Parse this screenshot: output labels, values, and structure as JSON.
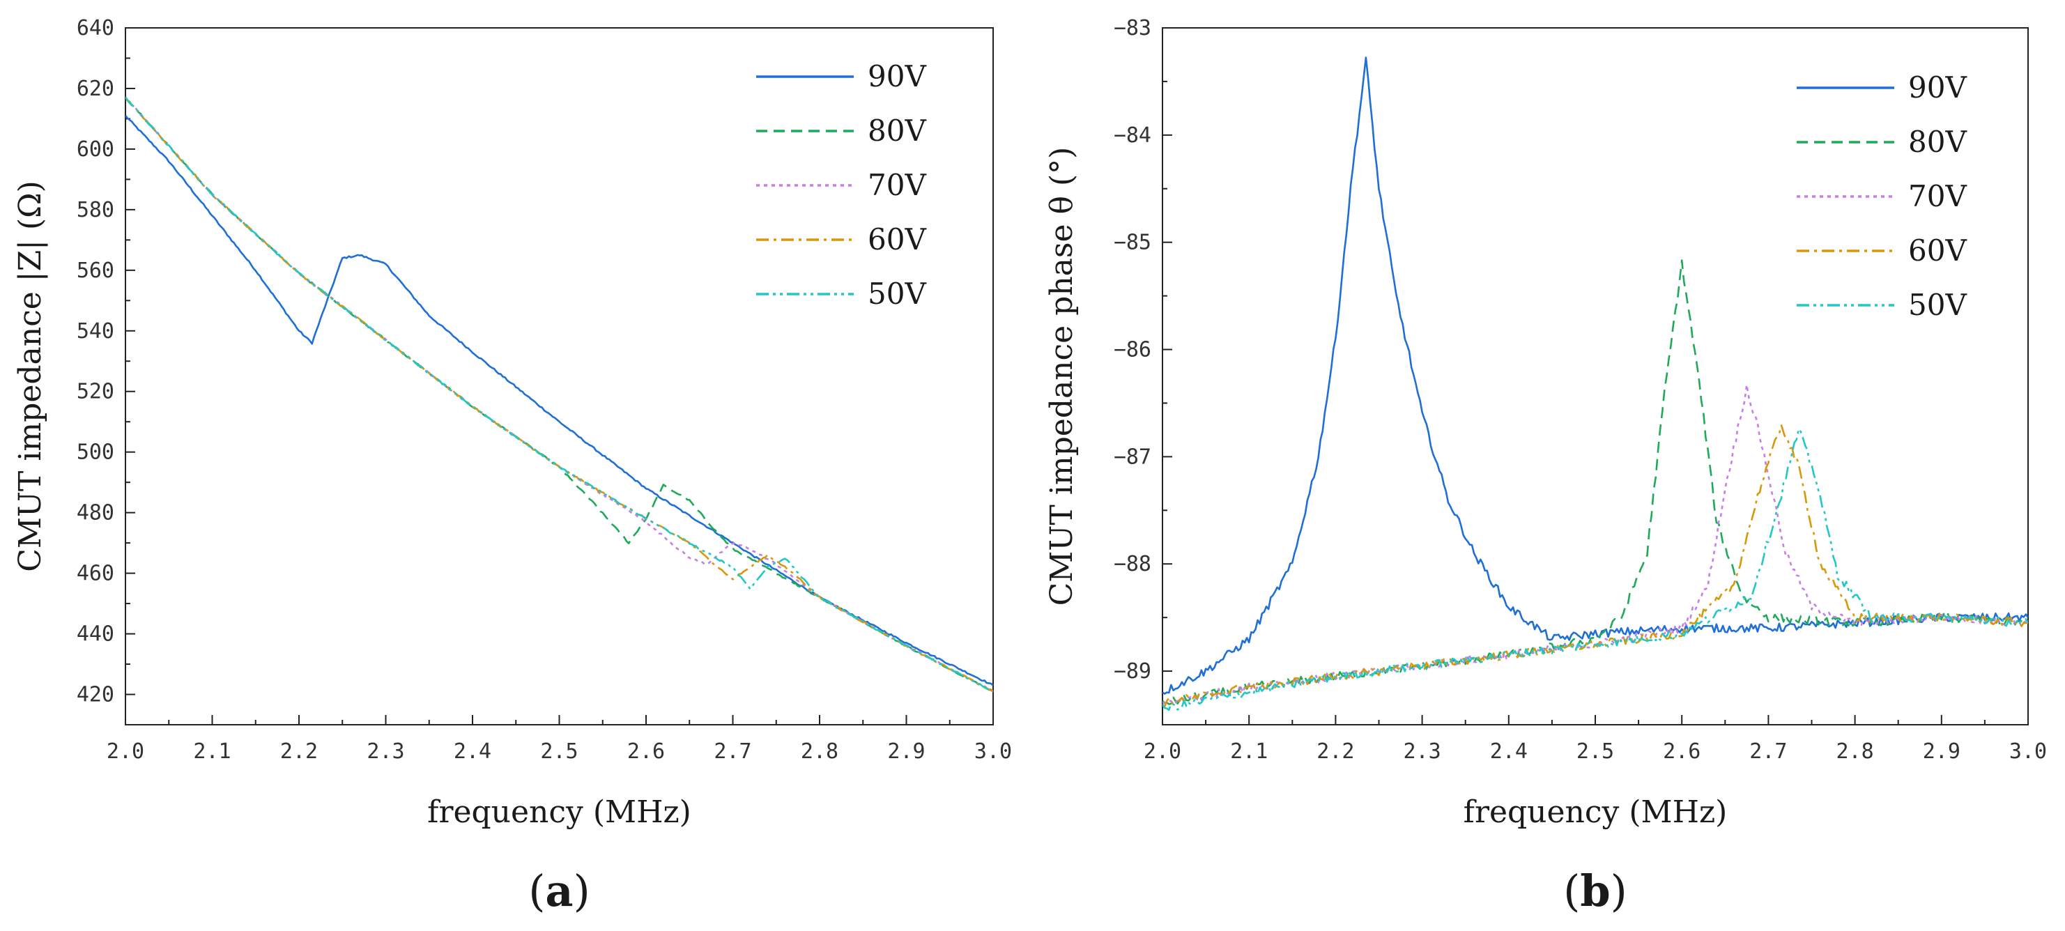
{
  "chart_data": [
    {
      "type": "line",
      "panel_label": "a",
      "xlabel": "frequency (MHz)",
      "ylabel": "CMUT impedance |Z| (Ω)",
      "xlim": [
        2.0,
        3.0
      ],
      "ylim": [
        410,
        640
      ],
      "xticks": [
        2.0,
        2.1,
        2.2,
        2.3,
        2.4,
        2.5,
        2.6,
        2.7,
        2.8,
        2.9,
        3.0
      ],
      "xtick_labels": [
        "2.0",
        "2.1",
        "2.2",
        "2.3",
        "2.4",
        "2.5",
        "2.6",
        "2.7",
        "2.8",
        "2.9",
        "3.0"
      ],
      "yticks": [
        420,
        440,
        460,
        480,
        500,
        520,
        540,
        560,
        580,
        600,
        620,
        640
      ],
      "ytick_labels": [
        "420",
        "440",
        "460",
        "480",
        "500",
        "520",
        "540",
        "560",
        "580",
        "600",
        "620",
        "640"
      ],
      "legend_position": "top-right",
      "series": [
        {
          "name": "90V",
          "color": "#1f6fd6",
          "dash": "solid",
          "x": [
            2.0,
            2.05,
            2.1,
            2.15,
            2.2,
            2.215,
            2.23,
            2.25,
            2.27,
            2.3,
            2.35,
            2.4,
            2.5,
            2.6,
            2.7,
            2.8,
            2.9,
            3.0
          ],
          "y": [
            611,
            596,
            578,
            560,
            540,
            536,
            548,
            564,
            565,
            562,
            545,
            533,
            510,
            488,
            470,
            452,
            437,
            423
          ]
        },
        {
          "name": "80V",
          "color": "#1faa5a",
          "dash": "dash",
          "x": [
            2.0,
            2.1,
            2.2,
            2.3,
            2.4,
            2.5,
            2.54,
            2.58,
            2.6,
            2.62,
            2.65,
            2.68,
            2.7,
            2.8,
            2.9,
            3.0
          ],
          "y": [
            617,
            585,
            559,
            537,
            515,
            495,
            483,
            470,
            478,
            489,
            484,
            474,
            468,
            452,
            436,
            421
          ]
        },
        {
          "name": "70V",
          "color": "#c77fe6",
          "dash": "dot",
          "x": [
            2.0,
            2.1,
            2.2,
            2.3,
            2.4,
            2.5,
            2.6,
            2.65,
            2.67,
            2.7,
            2.72,
            2.75,
            2.8,
            2.9,
            3.0
          ],
          "y": [
            617,
            585,
            559,
            537,
            515,
            495,
            477,
            465,
            463,
            470,
            468,
            463,
            452,
            436,
            421
          ]
        },
        {
          "name": "60V",
          "color": "#d9980a",
          "dash": "dashdot",
          "x": [
            2.0,
            2.1,
            2.2,
            2.3,
            2.4,
            2.5,
            2.6,
            2.65,
            2.7,
            2.72,
            2.74,
            2.77,
            2.8,
            2.9,
            3.0
          ],
          "y": [
            617,
            585,
            559,
            537,
            515,
            495,
            478,
            470,
            458,
            462,
            466,
            460,
            452,
            436,
            421
          ]
        },
        {
          "name": "50V",
          "color": "#22c7c7",
          "dash": "dashdotdot",
          "x": [
            2.0,
            2.1,
            2.2,
            2.3,
            2.4,
            2.5,
            2.6,
            2.7,
            2.72,
            2.74,
            2.76,
            2.8,
            2.9,
            3.0
          ],
          "y": [
            617,
            585,
            559,
            537,
            515,
            495,
            478,
            462,
            455,
            462,
            465,
            452,
            436,
            421
          ]
        }
      ]
    },
    {
      "type": "line",
      "panel_label": "b",
      "xlabel": "frequency (MHz)",
      "ylabel": "CMUT impedance phase θ (°)",
      "xlim": [
        2.0,
        3.0
      ],
      "ylim": [
        -89.5,
        -83
      ],
      "xticks": [
        2.0,
        2.1,
        2.2,
        2.3,
        2.4,
        2.5,
        2.6,
        2.7,
        2.8,
        2.9,
        3.0
      ],
      "xtick_labels": [
        "2.0",
        "2.1",
        "2.2",
        "2.3",
        "2.4",
        "2.5",
        "2.6",
        "2.7",
        "2.8",
        "2.9",
        "3.0"
      ],
      "yticks": [
        -89,
        -88,
        -87,
        -86,
        -85,
        -84,
        -83
      ],
      "ytick_labels": [
        "−89",
        "−88",
        "−87",
        "−86",
        "−85",
        "−84",
        "−83"
      ],
      "legend_position": "top-right",
      "series": [
        {
          "name": "90V",
          "color": "#1f6fd6",
          "dash": "solid",
          "x": [
            2.0,
            2.05,
            2.1,
            2.15,
            2.18,
            2.2,
            2.22,
            2.235,
            2.25,
            2.27,
            2.3,
            2.33,
            2.36,
            2.4,
            2.45,
            2.5,
            2.6,
            2.7,
            2.8,
            2.9,
            3.0
          ],
          "y": [
            -89.2,
            -89.0,
            -88.7,
            -88.0,
            -87.0,
            -85.9,
            -84.3,
            -83.3,
            -84.5,
            -85.5,
            -86.6,
            -87.4,
            -87.9,
            -88.4,
            -88.7,
            -88.65,
            -88.6,
            -88.6,
            -88.55,
            -88.5,
            -88.5
          ]
        },
        {
          "name": "80V",
          "color": "#1faa5a",
          "dash": "dash",
          "x": [
            2.0,
            2.1,
            2.2,
            2.3,
            2.4,
            2.5,
            2.53,
            2.56,
            2.58,
            2.6,
            2.62,
            2.64,
            2.67,
            2.7,
            2.8,
            2.9,
            3.0
          ],
          "y": [
            -89.3,
            -89.15,
            -89.05,
            -88.95,
            -88.85,
            -88.7,
            -88.5,
            -87.9,
            -86.4,
            -85.2,
            -86.3,
            -87.6,
            -88.3,
            -88.5,
            -88.55,
            -88.5,
            -88.55
          ]
        },
        {
          "name": "70V",
          "color": "#c77fe6",
          "dash": "dot",
          "x": [
            2.0,
            2.1,
            2.2,
            2.3,
            2.4,
            2.5,
            2.6,
            2.63,
            2.65,
            2.675,
            2.69,
            2.72,
            2.75,
            2.8,
            2.9,
            3.0
          ],
          "y": [
            -89.3,
            -89.15,
            -89.05,
            -88.95,
            -88.85,
            -88.75,
            -88.6,
            -88.2,
            -87.3,
            -86.35,
            -86.8,
            -87.9,
            -88.4,
            -88.55,
            -88.5,
            -88.55
          ]
        },
        {
          "name": "60V",
          "color": "#d9980a",
          "dash": "dashdot",
          "x": [
            2.0,
            2.1,
            2.2,
            2.3,
            2.4,
            2.5,
            2.6,
            2.66,
            2.69,
            2.715,
            2.735,
            2.76,
            2.8,
            2.9,
            3.0
          ],
          "y": [
            -89.3,
            -89.15,
            -89.05,
            -88.95,
            -88.85,
            -88.75,
            -88.65,
            -88.2,
            -87.3,
            -86.7,
            -87.1,
            -88.0,
            -88.5,
            -88.5,
            -88.55
          ]
        },
        {
          "name": "50V",
          "color": "#22c7c7",
          "dash": "dashdotdot",
          "x": [
            2.0,
            2.1,
            2.2,
            2.3,
            2.4,
            2.5,
            2.6,
            2.68,
            2.71,
            2.735,
            2.755,
            2.78,
            2.82,
            2.9,
            3.0
          ],
          "y": [
            -89.35,
            -89.2,
            -89.05,
            -88.95,
            -88.85,
            -88.75,
            -88.65,
            -88.3,
            -87.5,
            -86.75,
            -87.2,
            -88.1,
            -88.5,
            -88.5,
            -88.55
          ]
        }
      ]
    }
  ]
}
